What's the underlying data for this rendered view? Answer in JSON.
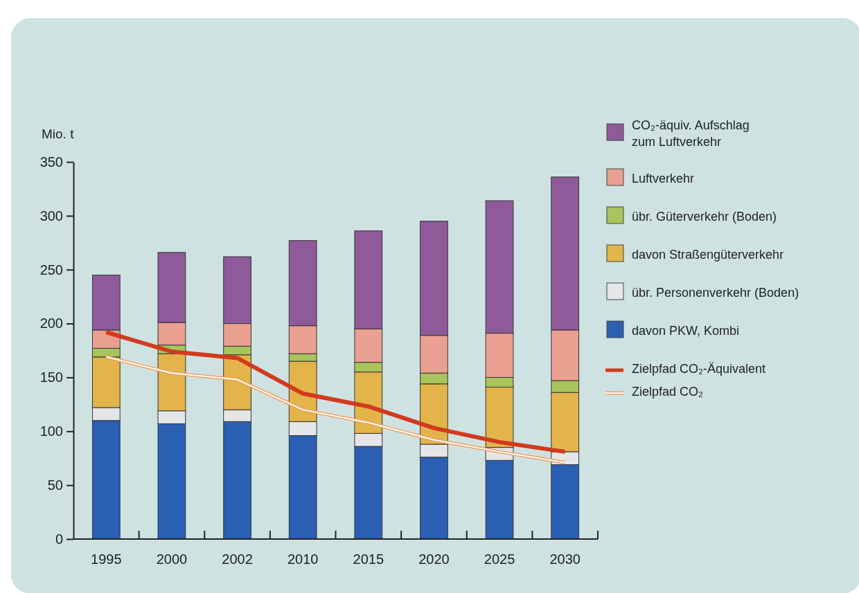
{
  "chart_data": {
    "type": "bar",
    "stacked": true,
    "ylabel": "Mio. t",
    "categories": [
      "1995",
      "2000",
      "2002",
      "2010",
      "2015",
      "2020",
      "2025",
      "2030"
    ],
    "ylim": [
      0,
      350
    ],
    "yticks": [
      0,
      50,
      100,
      150,
      200,
      250,
      300,
      350
    ],
    "grid": false,
    "legend": "right",
    "series": [
      {
        "name": "davon PKW, Kombi",
        "color": "#2b5fb4",
        "values": [
          110,
          107,
          109,
          96,
          86,
          76,
          73,
          69
        ]
      },
      {
        "name": "übr. Personenverkehr (Boden)",
        "color": "#e4e6e8",
        "values": [
          12,
          12,
          11,
          13,
          12,
          12,
          12,
          12
        ]
      },
      {
        "name": "davon Straßengüterverkehr",
        "color": "#e2b44a",
        "values": [
          47,
          53,
          51,
          56,
          57,
          56,
          56,
          55
        ]
      },
      {
        "name": "übr. Güterverkehr (Boden)",
        "color": "#a9c45c",
        "values": [
          8,
          8,
          8,
          7,
          9,
          10,
          9,
          11
        ]
      },
      {
        "name": "Luftverkehr",
        "color": "#e9a090",
        "values": [
          17,
          21,
          21,
          26,
          31,
          35,
          41,
          47
        ]
      },
      {
        "name": "CO₂-äquiv. Aufschlag zum Luftverkehr",
        "color": "#8e5a9a",
        "values": [
          51,
          65,
          62,
          79,
          91,
          106,
          123,
          142
        ]
      },
      {
        "name": "Zielpfad CO₂-Äquivalent",
        "type": "line",
        "color": "#d23a1e",
        "line_style": "solid",
        "values": [
          192,
          174,
          168,
          135,
          123,
          103,
          90,
          81
        ]
      },
      {
        "name": "Zielpfad CO₂",
        "type": "line",
        "color": "#f0a060",
        "line_style": "solid",
        "values": [
          169,
          154,
          148,
          120,
          108,
          92,
          81,
          71
        ]
      }
    ]
  }
}
